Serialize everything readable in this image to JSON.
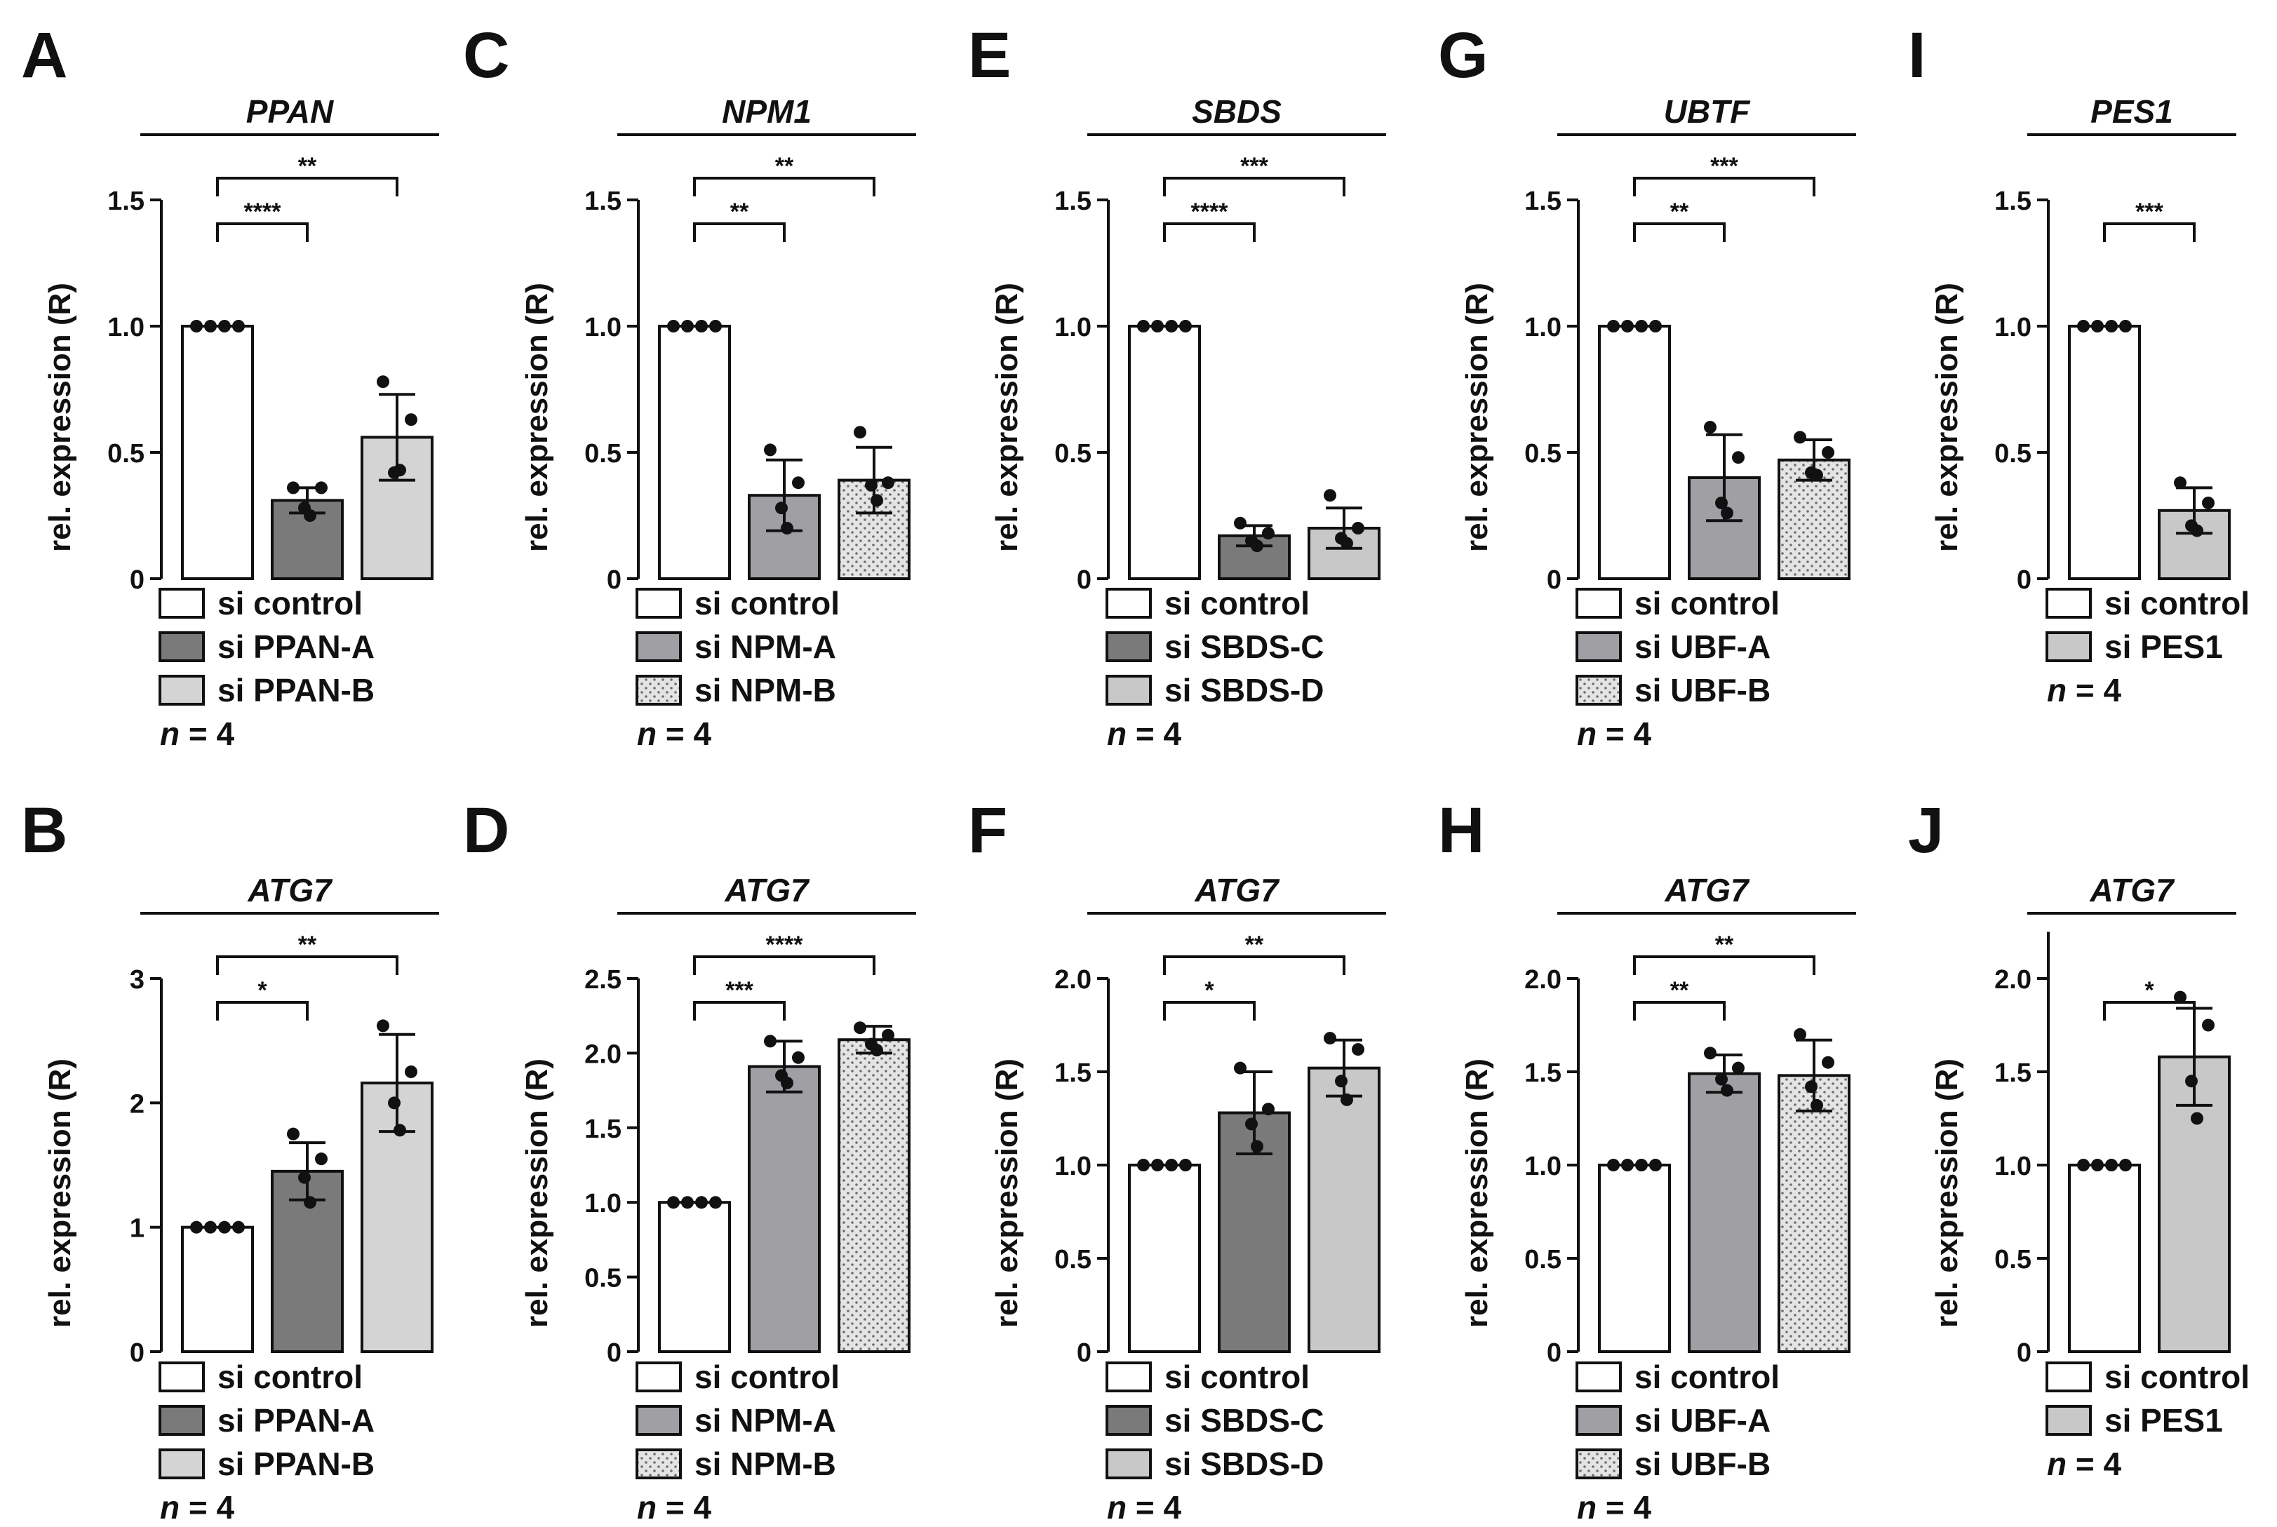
{
  "chart_data": [
    {
      "panel": "A",
      "type": "bar",
      "gene": "PPAN",
      "ylabel": "rel. expression (R)",
      "ylim": [
        0,
        1.5
      ],
      "yticks": [
        "0",
        "0.5",
        "1.0",
        "1.5"
      ],
      "tick_values": [
        0,
        0.5,
        1.0,
        1.5
      ],
      "bars": [
        {
          "label": "si control",
          "value": 1.0,
          "sd": 0,
          "fill": "#ffffff",
          "pattern": false,
          "points": [
            1.0,
            1.0,
            1.0,
            1.0
          ]
        },
        {
          "label": "si PPAN-A",
          "value": 0.31,
          "sd": 0.05,
          "fill": "#7a7a7a",
          "pattern": false,
          "points": [
            0.36,
            0.36,
            0.28,
            0.25
          ]
        },
        {
          "label": "si PPAN-B",
          "value": 0.56,
          "sd": 0.17,
          "fill": "#d4d4d4",
          "pattern": false,
          "points": [
            0.78,
            0.63,
            0.42,
            0.43
          ]
        }
      ],
      "brackets": [
        {
          "to": 1,
          "label": "****"
        },
        {
          "to": 2,
          "label": "**"
        }
      ],
      "n_label": "n",
      "n_value": "= 4"
    },
    {
      "panel": "B",
      "type": "bar",
      "gene": "ATG7",
      "ylabel": "rel. expression (R)",
      "ylim": [
        0,
        3
      ],
      "yticks": [
        "0",
        "1",
        "2",
        "3"
      ],
      "tick_values": [
        0,
        1,
        2,
        3
      ],
      "bars": [
        {
          "label": "si control",
          "value": 1.0,
          "sd": 0,
          "fill": "#ffffff",
          "pattern": false,
          "points": [
            1.0,
            1.0,
            1.0,
            1.0
          ]
        },
        {
          "label": "si PPAN-A",
          "value": 1.45,
          "sd": 0.23,
          "fill": "#7a7a7a",
          "pattern": false,
          "points": [
            1.75,
            1.55,
            1.4,
            1.2
          ]
        },
        {
          "label": "si PPAN-B",
          "value": 2.16,
          "sd": 0.39,
          "fill": "#d4d4d4",
          "pattern": false,
          "points": [
            2.62,
            2.25,
            2.0,
            1.78
          ]
        }
      ],
      "brackets": [
        {
          "to": 1,
          "label": "*"
        },
        {
          "to": 2,
          "label": "**"
        }
      ],
      "n_label": "n",
      "n_value": "= 4"
    },
    {
      "panel": "C",
      "type": "bar",
      "gene": "NPM1",
      "ylabel": "rel. expression (R)",
      "ylim": [
        0,
        1.5
      ],
      "yticks": [
        "0",
        "0.5",
        "1.0",
        "1.5"
      ],
      "tick_values": [
        0,
        0.5,
        1.0,
        1.5
      ],
      "bars": [
        {
          "label": "si control",
          "value": 1.0,
          "sd": 0,
          "fill": "#ffffff",
          "pattern": false,
          "points": [
            1.0,
            1.0,
            1.0,
            1.0
          ]
        },
        {
          "label": "si NPM-A",
          "value": 0.33,
          "sd": 0.14,
          "fill": "#a0a0a4",
          "pattern": false,
          "points": [
            0.51,
            0.38,
            0.28,
            0.2
          ]
        },
        {
          "label": "si NPM-B",
          "value": 0.39,
          "sd": 0.13,
          "fill": "#d8d8d8",
          "pattern": true,
          "points": [
            0.58,
            0.38,
            0.37,
            0.31
          ]
        }
      ],
      "brackets": [
        {
          "to": 1,
          "label": "**"
        },
        {
          "to": 2,
          "label": "**"
        }
      ],
      "n_label": "n",
      "n_value": "= 4"
    },
    {
      "panel": "D",
      "type": "bar",
      "gene": "ATG7",
      "ylabel": "rel. expression (R)",
      "ylim": [
        0,
        2.5
      ],
      "yticks": [
        "0",
        "0.5",
        "1.0",
        "1.5",
        "2.0",
        "2.5"
      ],
      "tick_values": [
        0,
        0.5,
        1.0,
        1.5,
        2.0,
        2.5
      ],
      "bars": [
        {
          "label": "si control",
          "value": 1.0,
          "sd": 0,
          "fill": "#ffffff",
          "pattern": false,
          "points": [
            1.0,
            1.0,
            1.0,
            1.0
          ]
        },
        {
          "label": "si NPM-A",
          "value": 1.91,
          "sd": 0.17,
          "fill": "#a0a0a4",
          "pattern": false,
          "points": [
            2.08,
            1.97,
            1.85,
            1.8
          ]
        },
        {
          "label": "si NPM-B",
          "value": 2.09,
          "sd": 0.09,
          "fill": "#d8d8d8",
          "pattern": true,
          "points": [
            2.17,
            2.12,
            2.06,
            2.02
          ]
        }
      ],
      "brackets": [
        {
          "to": 1,
          "label": "***"
        },
        {
          "to": 2,
          "label": "****"
        }
      ],
      "n_label": "n",
      "n_value": "= 4"
    },
    {
      "panel": "E",
      "type": "bar",
      "gene": "SBDS",
      "ylabel": "rel. expression (R)",
      "ylim": [
        0,
        1.5
      ],
      "yticks": [
        "0",
        "0.5",
        "1.0",
        "1.5"
      ],
      "tick_values": [
        0,
        0.5,
        1.0,
        1.5
      ],
      "bars": [
        {
          "label": "si control",
          "value": 1.0,
          "sd": 0,
          "fill": "#ffffff",
          "pattern": false,
          "points": [
            1.0,
            1.0,
            1.0,
            1.0
          ]
        },
        {
          "label": "si SBDS-C",
          "value": 0.17,
          "sd": 0.04,
          "fill": "#7a7a7a",
          "pattern": false,
          "points": [
            0.22,
            0.18,
            0.15,
            0.13
          ]
        },
        {
          "label": "si SBDS-D",
          "value": 0.2,
          "sd": 0.08,
          "fill": "#c8c8c8",
          "pattern": false,
          "points": [
            0.33,
            0.2,
            0.16,
            0.14
          ]
        }
      ],
      "brackets": [
        {
          "to": 1,
          "label": "****"
        },
        {
          "to": 2,
          "label": "***"
        }
      ],
      "n_label": "n",
      "n_value": "= 4"
    },
    {
      "panel": "F",
      "type": "bar",
      "gene": "ATG7",
      "ylabel": "rel. expression (R)",
      "ylim": [
        0,
        2.0
      ],
      "yticks": [
        "0",
        "0.5",
        "1.0",
        "1.5",
        "2.0"
      ],
      "tick_values": [
        0,
        0.5,
        1.0,
        1.5,
        2.0
      ],
      "bars": [
        {
          "label": "si control",
          "value": 1.0,
          "sd": 0,
          "fill": "#ffffff",
          "pattern": false,
          "points": [
            1.0,
            1.0,
            1.0,
            1.0
          ]
        },
        {
          "label": "si SBDS-C",
          "value": 1.28,
          "sd": 0.22,
          "fill": "#7a7a7a",
          "pattern": false,
          "points": [
            1.52,
            1.3,
            1.22,
            1.1
          ]
        },
        {
          "label": "si SBDS-D",
          "value": 1.52,
          "sd": 0.15,
          "fill": "#c8c8c8",
          "pattern": false,
          "points": [
            1.68,
            1.62,
            1.45,
            1.35
          ]
        }
      ],
      "brackets": [
        {
          "to": 1,
          "label": "*"
        },
        {
          "to": 2,
          "label": "**"
        }
      ],
      "n_label": "n",
      "n_value": "= 4"
    },
    {
      "panel": "G",
      "type": "bar",
      "gene": "UBTF",
      "ylabel": "rel. expression (R)",
      "ylim": [
        0,
        1.5
      ],
      "yticks": [
        "0",
        "0.5",
        "1.0",
        "1.5"
      ],
      "tick_values": [
        0,
        0.5,
        1.0,
        1.5
      ],
      "bars": [
        {
          "label": "si control",
          "value": 1.0,
          "sd": 0,
          "fill": "#ffffff",
          "pattern": false,
          "points": [
            1.0,
            1.0,
            1.0,
            1.0
          ]
        },
        {
          "label": "si UBF-A",
          "value": 0.4,
          "sd": 0.17,
          "fill": "#a0a0a4",
          "pattern": false,
          "points": [
            0.6,
            0.48,
            0.3,
            0.26
          ]
        },
        {
          "label": "si UBF-B",
          "value": 0.47,
          "sd": 0.08,
          "fill": "#d8d8d8",
          "pattern": true,
          "points": [
            0.56,
            0.5,
            0.42,
            0.41
          ]
        }
      ],
      "brackets": [
        {
          "to": 1,
          "label": "**"
        },
        {
          "to": 2,
          "label": "***"
        }
      ],
      "n_label": "n",
      "n_value": "= 4"
    },
    {
      "panel": "H",
      "type": "bar",
      "gene": "ATG7",
      "ylabel": "rel. expression (R)",
      "ylim": [
        0,
        2.0
      ],
      "yticks": [
        "0",
        "0.5",
        "1.0",
        "1.5",
        "2.0"
      ],
      "tick_values": [
        0,
        0.5,
        1.0,
        1.5,
        2.0
      ],
      "bars": [
        {
          "label": "si control",
          "value": 1.0,
          "sd": 0,
          "fill": "#ffffff",
          "pattern": false,
          "points": [
            1.0,
            1.0,
            1.0,
            1.0
          ]
        },
        {
          "label": "si UBF-A",
          "value": 1.49,
          "sd": 0.1,
          "fill": "#a0a0a4",
          "pattern": false,
          "points": [
            1.6,
            1.52,
            1.46,
            1.4
          ]
        },
        {
          "label": "si UBF-B",
          "value": 1.48,
          "sd": 0.19,
          "fill": "#d8d8d8",
          "pattern": true,
          "points": [
            1.7,
            1.55,
            1.42,
            1.32
          ]
        }
      ],
      "brackets": [
        {
          "to": 1,
          "label": "**"
        },
        {
          "to": 2,
          "label": "**"
        }
      ],
      "n_label": "n",
      "n_value": "= 4"
    },
    {
      "panel": "I",
      "type": "bar",
      "gene": "PES1",
      "ylabel": "rel. expression (R)",
      "ylim": [
        0,
        1.5
      ],
      "yticks": [
        "0",
        "0.5",
        "1.0",
        "1.5"
      ],
      "tick_values": [
        0,
        0.5,
        1.0,
        1.5
      ],
      "bars": [
        {
          "label": "si control",
          "value": 1.0,
          "sd": 0,
          "fill": "#ffffff",
          "pattern": false,
          "points": [
            1.0,
            1.0,
            1.0,
            1.0
          ]
        },
        {
          "label": "si PES1",
          "value": 0.27,
          "sd": 0.09,
          "fill": "#c8c8c8",
          "pattern": false,
          "points": [
            0.38,
            0.3,
            0.21,
            0.19
          ]
        }
      ],
      "brackets": [
        {
          "to": 1,
          "label": "***"
        }
      ],
      "n_label": "n",
      "n_value": "= 4"
    },
    {
      "panel": "J",
      "type": "bar",
      "gene": "ATG7",
      "ylabel": "rel. expression (R)",
      "ylim": [
        0,
        2.25
      ],
      "yticks": [
        "0",
        "0.5",
        "1.0",
        "1.5",
        "2.0"
      ],
      "tick_values": [
        0,
        0.5,
        1.0,
        1.5,
        2.0
      ],
      "bars": [
        {
          "label": "si control",
          "value": 1.0,
          "sd": 0,
          "fill": "#ffffff",
          "pattern": false,
          "points": [
            1.0,
            1.0,
            1.0,
            1.0
          ]
        },
        {
          "label": "si PES1",
          "value": 1.58,
          "sd": 0.26,
          "fill": "#c8c8c8",
          "pattern": false,
          "points": [
            1.9,
            1.75,
            1.45,
            1.25
          ]
        }
      ],
      "brackets": [
        {
          "to": 1,
          "label": "*"
        }
      ],
      "n_label": "n",
      "n_value": "= 4"
    }
  ]
}
